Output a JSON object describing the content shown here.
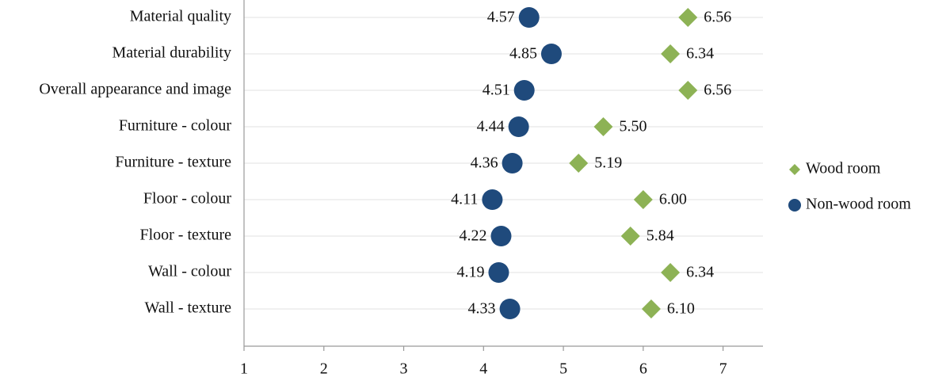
{
  "chart_data": {
    "type": "dot",
    "categories": [
      "Material quality",
      "Material durability",
      "Overall appearance and image",
      "Furniture - colour",
      "Furniture - texture",
      "Floor - colour",
      "Floor - texture",
      "Wall - colour",
      "Wall - texture"
    ],
    "series": [
      {
        "name": "Wood room",
        "color": "#8db255",
        "marker": "diamond",
        "values": [
          6.56,
          6.34,
          6.56,
          5.5,
          5.19,
          6.0,
          5.84,
          6.34,
          6.1
        ],
        "value_labels": [
          "6.56",
          "6.34",
          "6.56",
          "5.50",
          "5.19",
          "6.00",
          "5.84",
          "6.34",
          "6.10"
        ]
      },
      {
        "name": "Non-wood room",
        "color": "#1f4a7c",
        "marker": "circle",
        "values": [
          4.57,
          4.85,
          4.51,
          4.44,
          4.36,
          4.11,
          4.22,
          4.19,
          4.33
        ],
        "value_labels": [
          "4.57",
          "4.85",
          "4.51",
          "4.44",
          "4.36",
          "4.11",
          "4.22",
          "4.19",
          "4.33"
        ]
      }
    ],
    "xlim": [
      1,
      7.5
    ],
    "xticks": [
      1,
      2,
      3,
      4,
      5,
      6,
      7
    ],
    "grid": true,
    "legend": "right"
  }
}
